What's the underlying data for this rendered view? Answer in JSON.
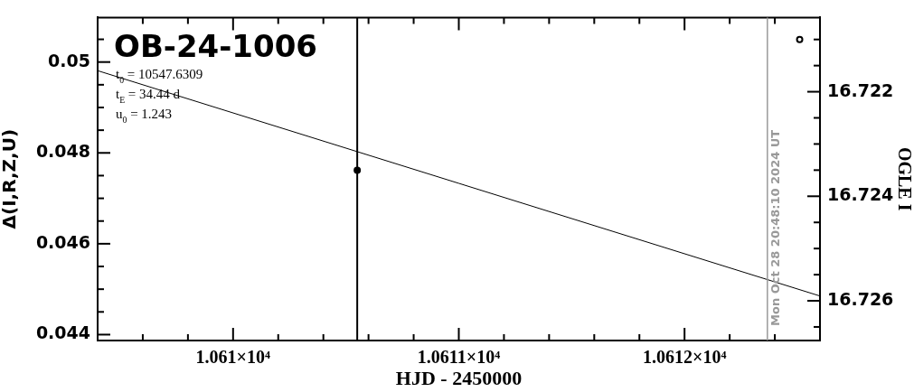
{
  "chart_data": {
    "type": "scatter",
    "title": "OB-24-1006",
    "annotations": [
      "t$_{0}$ = 10547.6309",
      "t$_{E}$ = 34.44 d",
      "u$_{0}$ = 1.243",
      {
        "text": "Mon Oct 28 20:48:10 2024 UT",
        "x": 10612.367,
        "y": 0.04419
      }
    ],
    "xlabel": "HJD - 2450000",
    "ylabel": "Δ(I,R,Z,U)",
    "y2label": "OGLE I",
    "series": [
      {
        "type": "line",
        "color": "#000000",
        "marker": "none",
        "x": [
          10609.4,
          10611,
          10612.6
        ],
        "values": [
          0.04981,
          0.04733,
          0.04485
        ]
      },
      {
        "color": "#000000",
        "marker": "circle",
        "x": [
          10610.55
        ],
        "values": [
          0.04762
        ]
      },
      {
        "color": "#000000",
        "marker": "circle",
        "axis": "y2",
        "x": [
          10612.51
        ],
        "values": [
          16.721
        ]
      }
    ],
    "xlim": [
      10609.4,
      10612.6
    ],
    "xticks": [
      {
        "value": 10609.4,
        "label": null
      },
      {
        "value": 10609.6,
        "label": null
      },
      {
        "value": 10609.8,
        "label": null
      },
      {
        "value": 10610,
        "label": "1.061×10⁴"
      },
      {
        "value": 10610.2,
        "label": null
      },
      {
        "value": 10610.4,
        "label": null
      },
      {
        "value": 10610.6,
        "label": null
      },
      {
        "value": 10610.8,
        "label": null
      },
      {
        "value": 10611,
        "label": "1.0611×10⁴"
      },
      {
        "value": 10611.2,
        "label": null
      },
      {
        "value": 10611.4,
        "label": null
      },
      {
        "value": 10611.6,
        "label": null
      },
      {
        "value": 10611.8,
        "label": null
      },
      {
        "value": 10612,
        "label": "1.0612×10⁴"
      },
      {
        "value": 10612.2,
        "label": null
      },
      {
        "value": 10612.4,
        "label": null
      }
    ],
    "ylim": [
      0.04387,
      0.05098
    ],
    "yticks": [
      0.044,
      {
        "value": 0.0445,
        "label": null
      },
      {
        "value": 0.045,
        "label": null
      },
      {
        "value": 0.0455,
        "label": null
      },
      0.046,
      {
        "value": 0.0465,
        "label": null
      },
      {
        "value": 0.047,
        "label": null
      },
      {
        "value": 0.0475,
        "label": null
      },
      0.048,
      {
        "value": 0.0485,
        "label": null
      },
      {
        "value": 0.049,
        "label": null
      },
      {
        "value": 0.0495,
        "label": null
      },
      0.05,
      {
        "value": 0.0505,
        "label": null
      }
    ],
    "y2lim": [
      16.72676,
      16.72058
    ],
    "y2ticks": [
      {
        "value": 16.7265,
        "label": null
      },
      16.726,
      {
        "value": 16.7255,
        "label": null
      },
      {
        "value": 16.725,
        "label": null
      },
      {
        "value": 16.7245,
        "label": null
      },
      16.724,
      {
        "value": 16.7235,
        "label": null
      },
      {
        "value": 16.723,
        "label": null
      },
      {
        "value": 16.7225,
        "label": null
      },
      16.722,
      {
        "value": 16.7215,
        "label": null
      },
      {
        "value": 16.721,
        "label": null
      }
    ],
    "ref_lines": [
      {
        "axis": "x",
        "value": 10610.55,
        "color": "#000000"
      },
      {
        "axis": "x",
        "value": 10612.367,
        "color": "#999999"
      }
    ],
    "grid": false,
    "legend": false
  }
}
